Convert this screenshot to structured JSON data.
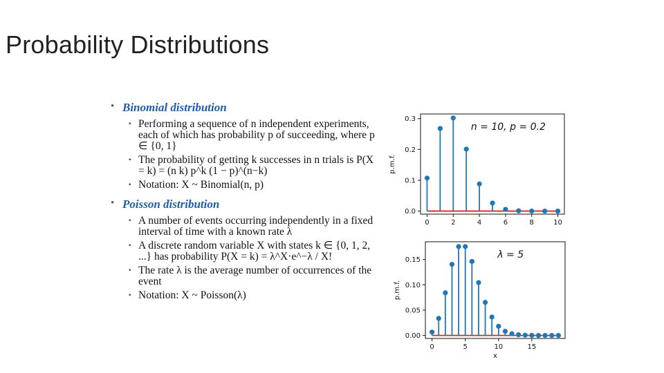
{
  "slide": {
    "title": "Probability Distributions"
  },
  "sections": [
    {
      "heading": "Binomial distribution",
      "items": [
        "Performing a sequence of n independent experiments, each of which has probability p of succeeding, where p ∈ {0, 1}",
        "The probability of getting k successes in n trials is P(X = k) = (n k) p^k (1 − p)^(n−k)",
        "Notation: X ~ Binomial(n, p)"
      ]
    },
    {
      "heading": "Poisson distribution",
      "items": [
        "A number of events occurring independently in a fixed interval of time with a known rate λ",
        "A discrete random variable X with states k ∈ {0, 1, 2, ...} has probability P(X = k) = λ^X·e^−λ / X!",
        "The rate λ is the average number of occurrences of the event",
        "Notation: X ~ Poisson(λ)"
      ]
    }
  ],
  "chart_data": [
    {
      "type": "stem",
      "annotation": "n = 10, p = 0.2",
      "xlabel": "",
      "ylabel": "p.m.f.",
      "x": [
        0,
        1,
        2,
        3,
        4,
        5,
        6,
        7,
        8,
        9,
        10
      ],
      "values": [
        0.107,
        0.268,
        0.302,
        0.201,
        0.088,
        0.026,
        0.0055,
        0.0008,
        0.0001,
        0.0,
        0.0
      ],
      "xlim": [
        -0.5,
        10.5
      ],
      "ylim": [
        -0.01,
        0.315
      ],
      "xticks": [
        0,
        2,
        4,
        6,
        8,
        10
      ],
      "yticks": [
        0.0,
        0.1,
        0.2,
        0.3
      ],
      "ytick_labels": [
        "0.0",
        "0.1",
        "0.2",
        "0.3"
      ],
      "colors": {
        "stem": "#1f77b4",
        "baseline": "#d62728"
      }
    },
    {
      "type": "stem",
      "annotation": "λ = 5",
      "xlabel": "x",
      "ylabel": "p.m.f.",
      "x": [
        0,
        1,
        2,
        3,
        4,
        5,
        6,
        7,
        8,
        9,
        10,
        11,
        12,
        13,
        14,
        15,
        16,
        17,
        18,
        19
      ],
      "values": [
        0.0067,
        0.0337,
        0.0842,
        0.1404,
        0.1755,
        0.1755,
        0.1462,
        0.1044,
        0.0653,
        0.0363,
        0.0181,
        0.0082,
        0.0034,
        0.0013,
        0.0005,
        0.0002,
        0.0,
        0.0,
        0.0,
        0.0
      ],
      "xlim": [
        -1,
        20
      ],
      "ylim": [
        -0.006,
        0.185
      ],
      "xticks": [
        0,
        5,
        10,
        15
      ],
      "yticks": [
        0.0,
        0.05,
        0.1,
        0.15
      ],
      "ytick_labels": [
        "0.00",
        "0.05",
        "0.10",
        "0.15"
      ],
      "colors": {
        "stem": "#1f77b4",
        "baseline": "#d62728"
      }
    }
  ]
}
